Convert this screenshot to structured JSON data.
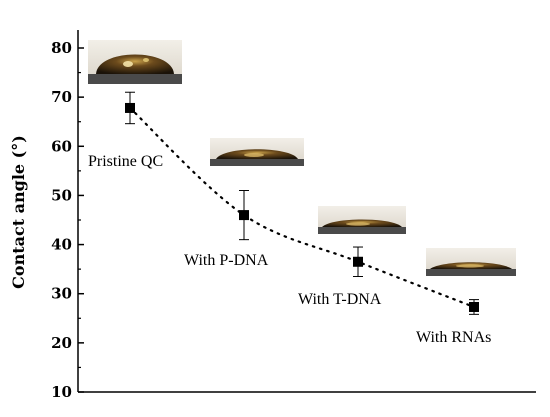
{
  "chart_data": {
    "type": "scatter",
    "title": "",
    "xlabel": "",
    "ylabel": "Contact angle (°)",
    "ylim": [
      10,
      80
    ],
    "yticks": [
      "10",
      "20",
      "30",
      "40",
      "50",
      "60",
      "70",
      "80"
    ],
    "grid": false,
    "series": [
      {
        "x": [
          1,
          2,
          3,
          4
        ],
        "values": [
          67.8,
          46.0,
          36.5,
          27.3
        ],
        "error": [
          3.2,
          5.0,
          3.0,
          1.5
        ]
      }
    ],
    "trend": "dotted",
    "annotations": [
      {
        "text": "Pristine QC",
        "image": "water-droplet-photo"
      },
      {
        "text": "With P-DNA",
        "image": "water-droplet-photo"
      },
      {
        "text": "With T-DNA",
        "image": "water-droplet-photo"
      },
      {
        "text": "With RNAs",
        "image": "water-droplet-photo"
      }
    ]
  }
}
